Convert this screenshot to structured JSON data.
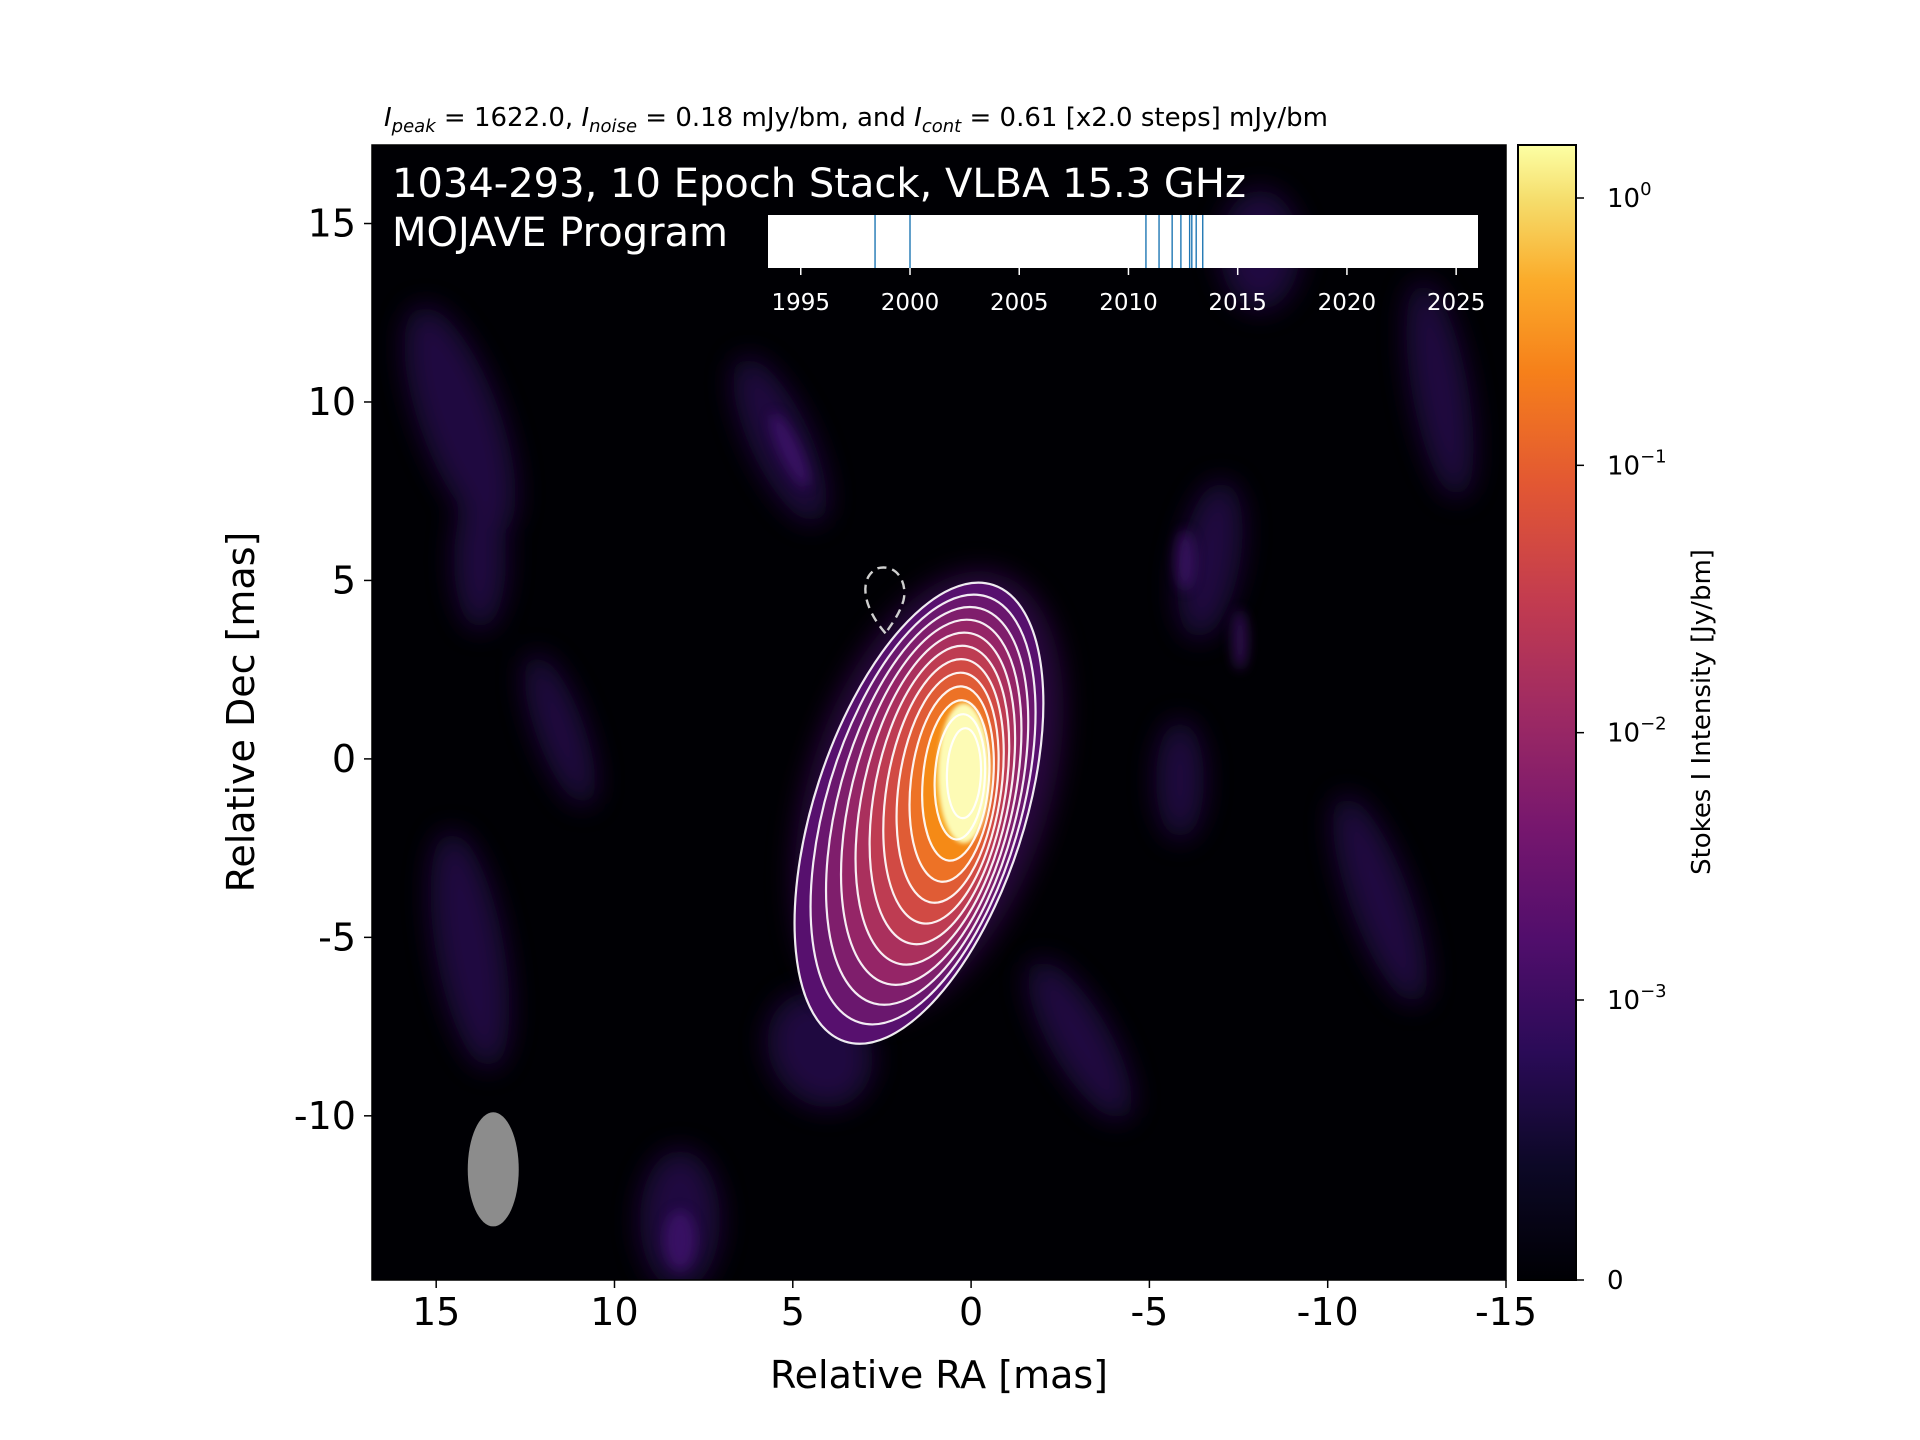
{
  "figure": {
    "title_parts": {
      "i_peak_symbol": "I",
      "i_peak_sub": "peak",
      "i_peak_value": " = 1622.0, ",
      "i_noise_symbol": "I",
      "i_noise_sub": "noise",
      "i_noise_value": " = 0.18 mJy/bm, and ",
      "i_cont_symbol": "I",
      "i_cont_sub": "cont",
      "i_cont_value": " = 0.61 [x2.0 steps] mJy/bm"
    },
    "annotation_line1": "1034-293, 10 Epoch Stack, VLBA 15.3 GHz",
    "annotation_line2": "MOJAVE Program",
    "colormap": "inferno"
  },
  "chart_data": {
    "type": "heatmap",
    "xlabel": "Relative RA [mas]",
    "ylabel": "Relative Dec [mas]",
    "xlim": [
      16.8,
      -15
    ],
    "ylim": [
      -14.6,
      17.2
    ],
    "x_ticks": [
      15,
      10,
      5,
      0,
      -5,
      -10,
      -15
    ],
    "x_tick_labels": [
      "15",
      "10",
      "5",
      "0",
      "-5",
      "-10",
      "-15"
    ],
    "y_ticks": [
      15,
      10,
      5,
      0,
      -5,
      -10
    ],
    "y_tick_labels": [
      "15",
      "10",
      "5",
      "0",
      "-5",
      "-10"
    ],
    "peak_position": [
      0.2,
      -0.4
    ],
    "contour_levels_count": 12,
    "negative_contour": {
      "x": 2.4,
      "y": 4.5
    },
    "beam": {
      "x": 13.4,
      "y": -11.5,
      "major_mas": 3.2,
      "minor_mas": 1.3,
      "pa_deg": 0
    },
    "colorbar": {
      "label": "Stokes I Intensity [Jy/bm]",
      "scale": "log",
      "ticks": [
        {
          "value": 1,
          "base": "10",
          "exp": "0"
        },
        {
          "value": 0.1,
          "base": "10",
          "exp": "−1"
        },
        {
          "value": 0.01,
          "base": "10",
          "exp": "−2"
        },
        {
          "value": 0.001,
          "base": "10",
          "exp": "−3"
        },
        {
          "value": 0,
          "base": "0",
          "exp": ""
        }
      ]
    },
    "epoch_timeline": {
      "xlim": [
        1993.5,
        2026
      ],
      "ticks": [
        1995,
        2000,
        2005,
        2010,
        2015,
        2020,
        2025
      ],
      "tick_labels": [
        "1995",
        "2000",
        "2005",
        "2010",
        "2015",
        "2020",
        "2025"
      ],
      "epochs": [
        1998.4,
        2000.0,
        2010.8,
        2011.4,
        2012.0,
        2012.4,
        2012.8,
        2012.9,
        2013.1,
        2013.4
      ],
      "line_color": "#1f77b4"
    }
  }
}
